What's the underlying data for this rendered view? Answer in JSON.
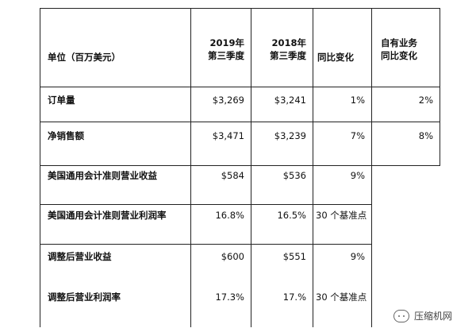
{
  "header": {
    "unit": "单位（百万美元）",
    "col2019": [
      "2019年",
      "第三季度"
    ],
    "col2018": [
      "2018年",
      "第三季度"
    ],
    "change": "同比变化",
    "organic": [
      "自有业务",
      "同比变化"
    ]
  },
  "rows": [
    {
      "label": "订单量",
      "y2019": "$3,269",
      "y2018": "$3,241",
      "change": "1%",
      "organic": "2%"
    },
    {
      "label": "净销售额",
      "y2019": "$3,471",
      "y2018": "$3,239",
      "change": "7%",
      "organic": "8%"
    },
    {
      "label": "美国通用会计准则营业收益",
      "y2019": "$584",
      "y2018": "$536",
      "change": "9%",
      "organic": ""
    },
    {
      "label": "美国通用会计准则营业利润率",
      "y2019": "16.8%",
      "y2018": "16.5%",
      "change": "30 个基准点",
      "organic": ""
    },
    {
      "label": "调整后营业收益",
      "y2019": "$600",
      "y2018": "$551",
      "change": "9%",
      "organic": ""
    },
    {
      "label": "调整后营业利润率",
      "y2019": "17.3%",
      "y2018": "17.%",
      "change": "30 个基准点",
      "organic": ""
    }
  ],
  "watermark": "压缩机网"
}
